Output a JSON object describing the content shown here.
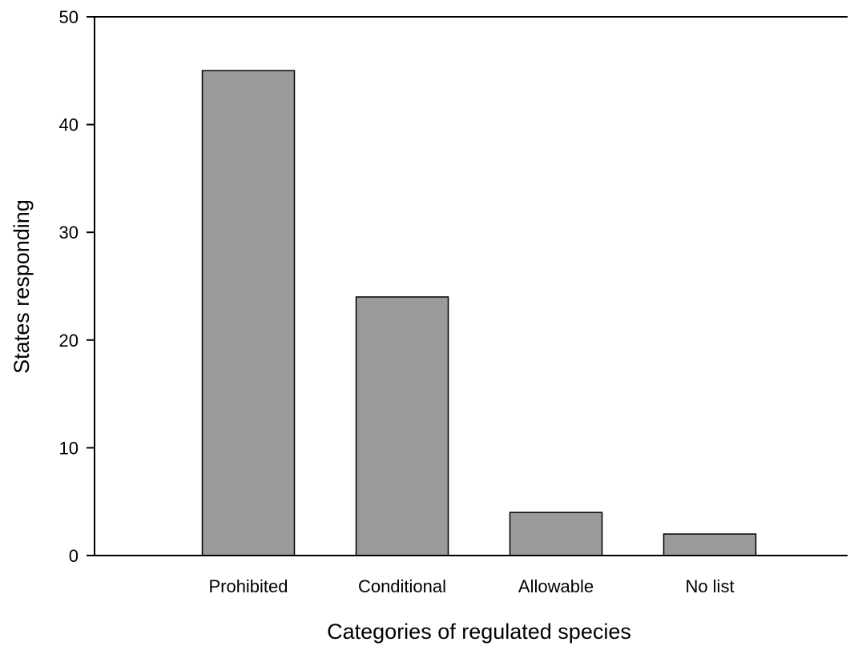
{
  "chart_data": {
    "type": "bar",
    "title": "",
    "xlabel": "Categories of regulated species",
    "ylabel": "States responding",
    "categories": [
      "Prohibited",
      "Conditional",
      "Allowable",
      "No list"
    ],
    "values": [
      45,
      24,
      4,
      2
    ],
    "ylim": [
      0,
      50
    ],
    "yticks": [
      0,
      10,
      20,
      30,
      40,
      50
    ],
    "grid": false,
    "bar_color": "#999b99",
    "axis_color": "#000000"
  }
}
